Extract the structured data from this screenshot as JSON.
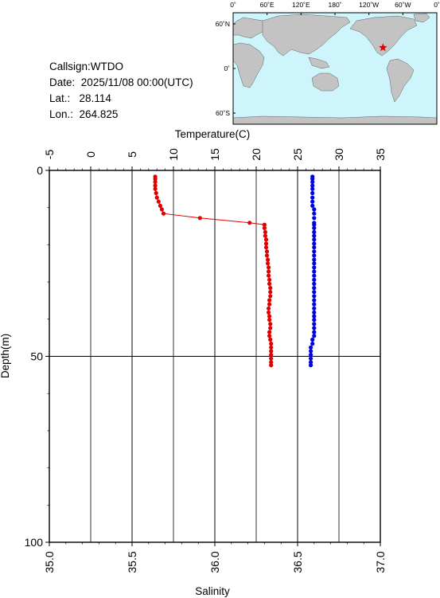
{
  "header": {
    "callsign_label": "Callsign:",
    "callsign": "WTDO",
    "date_label": "Date:",
    "date": "2025/11/08 00:00(UTC)",
    "lat_label": "Lat.:",
    "lat": "28.114",
    "lon_label": "Lon.:",
    "lon": "264.825"
  },
  "map": {
    "lon_ticks": [
      "0˚",
      "60˚E",
      "120˚E",
      "180˚",
      "120˚W",
      "60˚W",
      "0˚"
    ],
    "lat_ticks": [
      "60˚N",
      "0˚",
      "60˚S"
    ],
    "station": {
      "lon": 264.825,
      "lat": 28.114
    },
    "colors": {
      "ocean": "#cdf5fb",
      "land": "#c3c3c3",
      "marker": "#e00000"
    }
  },
  "chart_data": {
    "type": "scatter",
    "top_axis": {
      "label": "Temperature(C)",
      "range": [
        -5,
        35
      ],
      "ticks": [
        "-5",
        "0",
        "5",
        "10",
        "15",
        "20",
        "25",
        "30",
        "35"
      ]
    },
    "bottom_axis": {
      "label": "Salinity",
      "range": [
        35.0,
        37.0
      ],
      "ticks": [
        "35.0",
        "35.5",
        "36.0",
        "36.5",
        "37.0"
      ]
    },
    "y_axis": {
      "label": "Depth(m)",
      "range": [
        0,
        100
      ],
      "inverted": true,
      "ticks": [
        "0",
        "50",
        "100"
      ]
    },
    "grid": true,
    "series": [
      {
        "color": "#e00000",
        "axis": "top",
        "connected": true,
        "x": [
          7.8,
          7.8,
          7.8,
          7.8,
          7.8,
          7.9,
          8.0,
          8.2,
          8.4,
          8.6,
          8.8,
          13.2,
          19.2,
          21.0,
          21.0,
          21.1,
          21.1,
          21.2,
          21.2,
          21.2,
          21.3,
          21.3,
          21.4,
          21.4,
          21.5,
          21.5,
          21.5,
          21.6,
          21.6,
          21.7,
          21.7,
          21.7,
          21.6,
          21.6,
          21.5,
          21.5,
          21.6,
          21.6,
          21.7,
          21.7,
          21.6,
          21.6,
          21.7,
          21.8,
          21.8,
          21.8,
          21.8,
          21.8,
          21.8,
          21.8
        ],
        "y": [
          1.7,
          2.3,
          3.1,
          4.1,
          5.0,
          6.1,
          7.3,
          8.4,
          9.5,
          10.5,
          11.6,
          12.8,
          14.1,
          14.6,
          15.5,
          16.6,
          17.6,
          18.6,
          19.7,
          20.7,
          21.8,
          22.9,
          24.0,
          25.0,
          26.1,
          27.2,
          28.3,
          29.4,
          30.5,
          31.6,
          32.7,
          33.8,
          34.9,
          36.0,
          37.1,
          38.2,
          39.2,
          40.2,
          41.3,
          42.4,
          43.5,
          44.5,
          45.5,
          46.6,
          47.6,
          48.6,
          49.6,
          50.6,
          51.6,
          52.4
        ]
      },
      {
        "color": "#0000e0",
        "axis": "bottom",
        "connected": false,
        "x": [
          36.59,
          36.59,
          36.59,
          36.59,
          36.59,
          36.59,
          36.59,
          36.59,
          36.59,
          36.6,
          36.6,
          36.6,
          36.6,
          36.6,
          36.6,
          36.6,
          36.6,
          36.6,
          36.6,
          36.6,
          36.6,
          36.6,
          36.6,
          36.6,
          36.6,
          36.6,
          36.6,
          36.6,
          36.6,
          36.6,
          36.6,
          36.6,
          36.6,
          36.6,
          36.6,
          36.6,
          36.6,
          36.6,
          36.6,
          36.6,
          36.6,
          36.6,
          36.59,
          36.59,
          36.58,
          36.58,
          36.58,
          36.58,
          36.58,
          36.58
        ],
        "y": [
          1.7,
          2.3,
          3.1,
          4.1,
          5.0,
          6.1,
          7.3,
          8.4,
          9.5,
          10.5,
          11.6,
          12.8,
          14.1,
          14.6,
          15.5,
          16.6,
          17.6,
          18.6,
          19.7,
          20.7,
          21.8,
          22.9,
          24.0,
          25.0,
          26.1,
          27.2,
          28.3,
          29.4,
          30.5,
          31.6,
          32.7,
          33.8,
          34.9,
          36.0,
          37.1,
          38.2,
          39.2,
          40.2,
          41.3,
          42.4,
          43.5,
          44.5,
          45.5,
          46.6,
          47.6,
          48.6,
          49.6,
          50.6,
          51.6,
          52.4
        ]
      }
    ]
  }
}
